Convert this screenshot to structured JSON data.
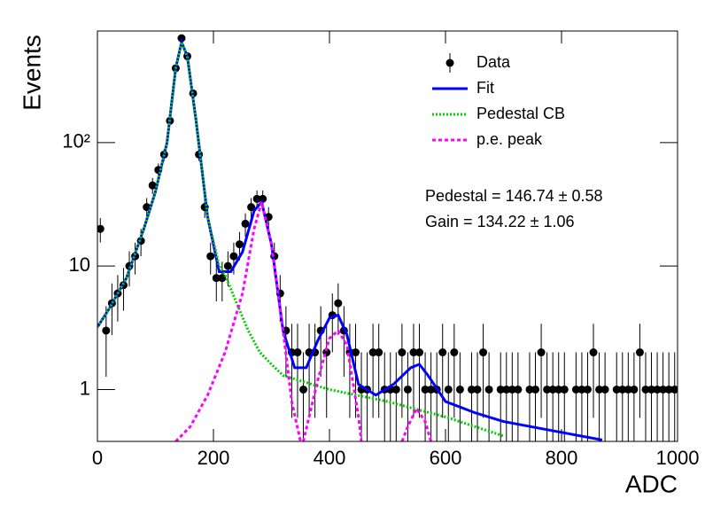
{
  "chart_data": {
    "type": "scatter",
    "xlabel": "ADC",
    "ylabel": "Events",
    "xlim": [
      0,
      1000
    ],
    "xticks": [
      0,
      200,
      400,
      600,
      800,
      1000
    ],
    "ylim": [
      0.38,
      800
    ],
    "yticks": [
      1,
      10,
      {
        "value": 100,
        "label": "10²"
      }
    ],
    "log_y": true,
    "legend": "upper right",
    "annotations": [
      "Pedestal = 146.74 ± 0.58",
      "Gain = 134.22 ± 1.06"
    ],
    "series": [
      {
        "name": "Data",
        "color": "#000000",
        "style": "points",
        "x": [
          5,
          15,
          25,
          35,
          45,
          55,
          65,
          75,
          85,
          95,
          105,
          115,
          125,
          135,
          145,
          155,
          165,
          175,
          185,
          195,
          205,
          215,
          225,
          235,
          245,
          255,
          265,
          275,
          285,
          295,
          305,
          315,
          325,
          335,
          345,
          355,
          365,
          375,
          385,
          395,
          405,
          415,
          425,
          435,
          445,
          455,
          465,
          475,
          485,
          495,
          505,
          515,
          525,
          535,
          545,
          555,
          565,
          575,
          585,
          595,
          605,
          615,
          625,
          635,
          645,
          655,
          665,
          675,
          685,
          695,
          705,
          715,
          725,
          735,
          745,
          755,
          765,
          775,
          785,
          795,
          805,
          815,
          825,
          835,
          845,
          855,
          865,
          875,
          885,
          895,
          905,
          915,
          925,
          935,
          945,
          955,
          965,
          975,
          985,
          995
        ],
        "values": [
          20,
          3,
          5,
          6,
          7,
          10,
          12,
          16,
          30,
          45,
          60,
          80,
          150,
          400,
          700,
          500,
          250,
          80,
          30,
          12,
          8,
          8,
          10,
          12,
          15,
          22,
          30,
          35,
          35,
          25,
          12,
          6,
          3,
          2,
          2,
          1,
          2,
          2,
          3,
          2,
          4,
          5,
          3,
          2,
          2,
          1,
          1,
          2,
          2,
          1,
          1,
          1,
          2,
          1,
          2,
          2,
          1,
          1,
          1,
          2,
          1,
          2,
          1,
          null,
          1,
          1,
          2,
          1,
          null,
          1,
          1,
          1,
          1,
          null,
          1,
          1,
          2,
          1,
          1,
          1,
          1,
          null,
          1,
          1,
          1,
          2,
          1,
          1,
          null,
          1,
          1,
          1,
          1,
          2,
          1,
          1,
          1,
          1,
          1,
          1
        ],
        "errors": [
          4.47,
          1.73,
          2.24,
          2.45,
          2.65,
          3.16,
          3.46,
          4,
          5.48,
          6.71,
          7.75,
          8.94,
          12.25,
          20,
          26.46,
          22.36,
          15.81,
          8.94,
          5.48,
          3.46,
          2.83,
          2.83,
          3.16,
          3.46,
          3.87,
          4.69,
          5.48,
          5.92,
          5.92,
          5,
          3.46,
          2.45,
          1.73,
          1.41,
          1.41,
          1,
          1.41,
          1.41,
          1.73,
          1.41,
          2,
          2.24,
          1.73,
          1.41,
          1.41,
          1,
          1,
          1.41,
          1.41,
          1,
          1,
          1,
          1.41,
          1,
          1.41,
          1.41,
          1,
          1,
          1,
          1.41,
          1,
          1.41,
          1,
          null,
          1,
          1,
          1.41,
          1,
          null,
          1,
          1,
          1,
          1,
          null,
          1,
          1,
          1.41,
          1,
          1,
          1,
          1,
          null,
          1,
          1,
          1,
          1.41,
          1,
          1,
          null,
          1,
          1,
          1,
          1,
          1.41,
          1,
          1,
          1,
          1,
          1,
          1
        ]
      },
      {
        "name": "Fit",
        "color": "#0000ff",
        "style": "solid",
        "x": [
          0,
          20,
          50,
          80,
          100,
          120,
          135,
          145,
          155,
          170,
          190,
          210,
          230,
          250,
          270,
          283,
          300,
          320,
          340,
          360,
          380,
          400,
          415,
          430,
          450,
          480,
          510,
          540,
          555,
          570,
          600,
          650,
          700,
          800,
          870
        ],
        "values": [
          3.2,
          4.5,
          8,
          20,
          40,
          100,
          400,
          650,
          500,
          150,
          25,
          9,
          9,
          13,
          28,
          33,
          15,
          3,
          1.5,
          1.5,
          2.5,
          3.8,
          4,
          2.8,
          1.1,
          0.9,
          1.1,
          1.5,
          1.6,
          1.3,
          0.8,
          0.65,
          0.55,
          0.45,
          0.39
        ]
      },
      {
        "name": "Pedestal CB",
        "color": "#00cc00",
        "style": "dotted",
        "x": [
          0,
          20,
          50,
          80,
          100,
          120,
          135,
          145,
          155,
          170,
          190,
          210,
          220,
          240,
          260,
          280,
          300,
          320,
          400,
          500,
          600,
          700
        ],
        "values": [
          3.2,
          4.5,
          8,
          20,
          40,
          100,
          400,
          650,
          500,
          150,
          25,
          10,
          8.5,
          5,
          3,
          2,
          1.6,
          1.3,
          1.0,
          0.8,
          0.6,
          0.42
        ]
      },
      {
        "name": "p.e. peak",
        "color": "#ff00ff",
        "style": "dashed",
        "x": [
          135,
          160,
          190,
          220,
          250,
          270,
          283,
          300,
          320,
          335,
          350,
          null,
          355,
          380,
          400,
          415,
          430,
          450,
          455,
          null,
          525,
          535,
          550,
          565,
          575
        ],
        "values": [
          0.38,
          0.5,
          0.9,
          2,
          6,
          20,
          33,
          15,
          3,
          0.8,
          0.38,
          null,
          0.38,
          1.2,
          2.6,
          3,
          2.3,
          0.6,
          0.38,
          null,
          0.38,
          0.5,
          0.7,
          0.55,
          0.38
        ]
      }
    ]
  }
}
